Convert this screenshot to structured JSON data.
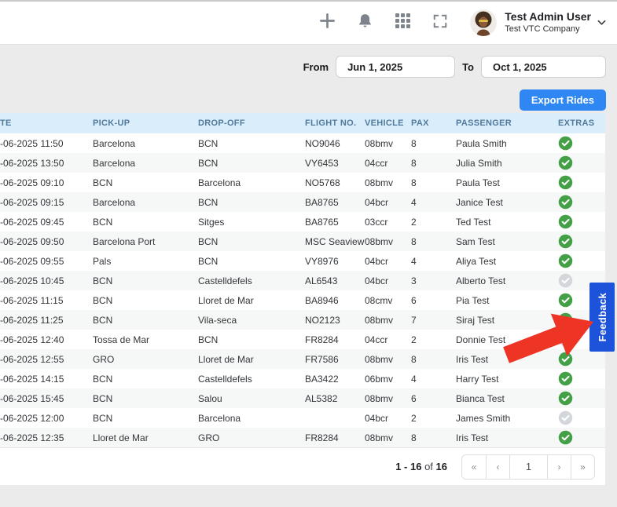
{
  "topbar": {
    "icons": [
      "plus-icon",
      "bell-icon",
      "apps-grid-icon",
      "fullscreen-icon",
      "chevron-down-icon"
    ],
    "user_name": "Test Admin User",
    "company": "Test VTC Company"
  },
  "filters": {
    "from_label": "From",
    "from_value": "Jun 1, 2025",
    "to_label": "To",
    "to_value": "Oct 1, 2025",
    "export_label": "Export Rides"
  },
  "table": {
    "columns": [
      "TE",
      "PICK-UP",
      "DROP-OFF",
      "FLIGHT NO.",
      "VEHICLE",
      "PAX",
      "PASSENGER",
      "EXTRAS"
    ],
    "rows": [
      {
        "date": "-06-2025 11:50",
        "pickup": "Barcelona",
        "dropoff": "BCN",
        "flight": "NO9046",
        "vehicle": "08bmv",
        "pax": "8",
        "passenger": "Paula Smith",
        "extras": "green"
      },
      {
        "date": "-06-2025 13:50",
        "pickup": "Barcelona",
        "dropoff": "BCN",
        "flight": "VY6453",
        "vehicle": "04ccr",
        "pax": "8",
        "passenger": "Julia Smith",
        "extras": "green"
      },
      {
        "date": "-06-2025 09:10",
        "pickup": "BCN",
        "dropoff": "Barcelona",
        "flight": "NO5768",
        "vehicle": "08bmv",
        "pax": "8",
        "passenger": "Paula Test",
        "extras": "green"
      },
      {
        "date": "-06-2025 09:15",
        "pickup": "Barcelona",
        "dropoff": "BCN",
        "flight": "BA8765",
        "vehicle": "04bcr",
        "pax": "4",
        "passenger": "Janice Test",
        "extras": "green"
      },
      {
        "date": "-06-2025 09:45",
        "pickup": "BCN",
        "dropoff": "Sitges",
        "flight": "BA8765",
        "vehicle": "03ccr",
        "pax": "2",
        "passenger": "Ted Test",
        "extras": "green"
      },
      {
        "date": "-06-2025 09:50",
        "pickup": "Barcelona Port",
        "dropoff": "BCN",
        "flight": "MSC Seaview",
        "vehicle": "08bmv",
        "pax": "8",
        "passenger": "Sam Test",
        "extras": "green"
      },
      {
        "date": "-06-2025 09:55",
        "pickup": "Pals",
        "dropoff": "BCN",
        "flight": "VY8976",
        "vehicle": "04bcr",
        "pax": "4",
        "passenger": "Aliya Test",
        "extras": "green"
      },
      {
        "date": "-06-2025 10:45",
        "pickup": "BCN",
        "dropoff": "Castelldefels",
        "flight": "AL6543",
        "vehicle": "04bcr",
        "pax": "3",
        "passenger": "Alberto Test",
        "extras": "gray"
      },
      {
        "date": "-06-2025 11:15",
        "pickup": "BCN",
        "dropoff": "Lloret de Mar",
        "flight": "BA8946",
        "vehicle": "08cmv",
        "pax": "6",
        "passenger": "Pia Test",
        "extras": "green"
      },
      {
        "date": "-06-2025 11:25",
        "pickup": "BCN",
        "dropoff": "Vila-seca",
        "flight": "NO2123",
        "vehicle": "08bmv",
        "pax": "7",
        "passenger": "Siraj Test",
        "extras": "green"
      },
      {
        "date": "-06-2025 12:40",
        "pickup": "Tossa de Mar",
        "dropoff": "BCN",
        "flight": "FR8284",
        "vehicle": "04ccr",
        "pax": "2",
        "passenger": "Donnie Test",
        "extras": "gray"
      },
      {
        "date": "-06-2025 12:55",
        "pickup": "GRO",
        "dropoff": "Lloret de Mar",
        "flight": "FR7586",
        "vehicle": "08bmv",
        "pax": "8",
        "passenger": "Iris Test",
        "extras": "green"
      },
      {
        "date": "-06-2025 14:15",
        "pickup": "BCN",
        "dropoff": "Castelldefels",
        "flight": "BA3422",
        "vehicle": "06bmv",
        "pax": "4",
        "passenger": "Harry Test",
        "extras": "green"
      },
      {
        "date": "-06-2025 15:45",
        "pickup": "BCN",
        "dropoff": "Salou",
        "flight": "AL5382",
        "vehicle": "08bmv",
        "pax": "6",
        "passenger": "Bianca Test",
        "extras": "green"
      },
      {
        "date": "-06-2025 12:00",
        "pickup": "BCN",
        "dropoff": "Barcelona",
        "flight": "",
        "vehicle": "04bcr",
        "pax": "2",
        "passenger": "James Smith",
        "extras": "gray"
      },
      {
        "date": "-06-2025 12:35",
        "pickup": "Lloret de Mar",
        "dropoff": "GRO",
        "flight": "FR8284",
        "vehicle": "08bmv",
        "pax": "8",
        "passenger": "Iris Test",
        "extras": "green"
      }
    ]
  },
  "pagination": {
    "range": "1 - 16",
    "of_label": "of",
    "total": "16",
    "buttons": [
      "«",
      "‹",
      "1",
      "›",
      "»"
    ]
  },
  "feedback_label": "Feedback",
  "colors": {
    "accent_blue": "#2e87f2",
    "feedback_blue": "#1d53da",
    "header_bg": "#d9edfb",
    "header_text": "#527a9c",
    "check_green": "#43a047",
    "check_gray": "#d3d7dc",
    "arrow_red": "#ee3424"
  }
}
